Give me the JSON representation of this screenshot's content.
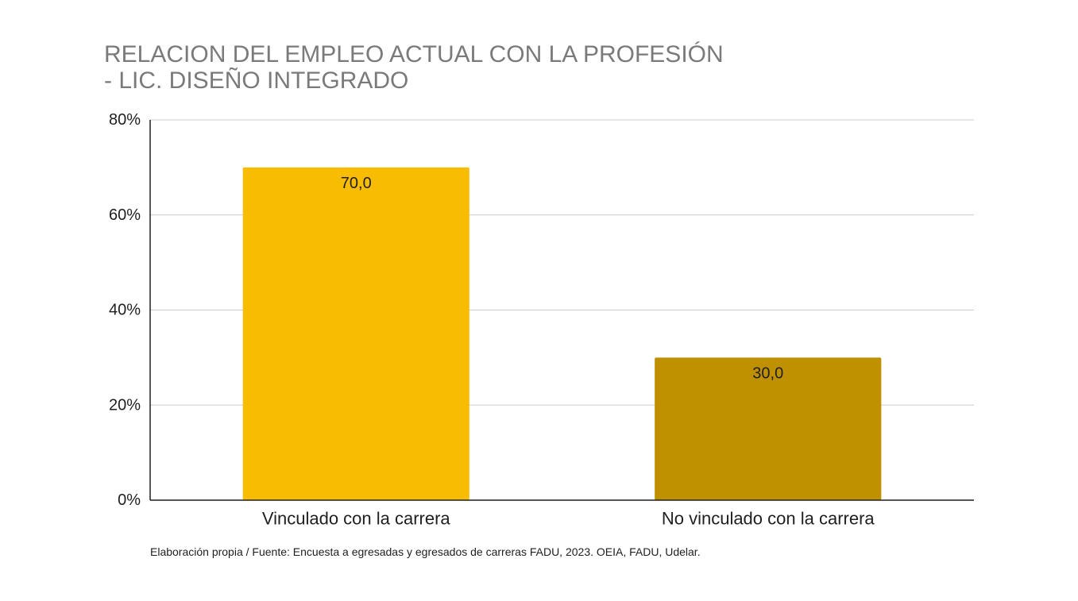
{
  "chart_data": {
    "type": "bar",
    "title_lines": [
      "RELACION DEL EMPLEO ACTUAL CON LA PROFESIÓN",
      "- LIC. DISEÑO INTEGRADO"
    ],
    "categories": [
      "Vinculado con la carrera",
      "No vinculado con la carrera"
    ],
    "values": [
      70.0,
      30.0
    ],
    "value_labels": [
      "70,0",
      "30,0"
    ],
    "colors": [
      "#F8BD02",
      "#BF9000"
    ],
    "ylim": [
      0,
      80
    ],
    "yticks": [
      0,
      20,
      40,
      60,
      80
    ],
    "ytick_labels": [
      "0%",
      "20%",
      "40%",
      "60%",
      "80%"
    ],
    "xlabel": "",
    "ylabel": "",
    "grid": true,
    "legend": "none"
  },
  "footer": {
    "source": "Elaboración propia / Fuente: Encuesta a egresadas y egresados de carreras FADU, 2023. OEIA, FADU, Udelar."
  }
}
